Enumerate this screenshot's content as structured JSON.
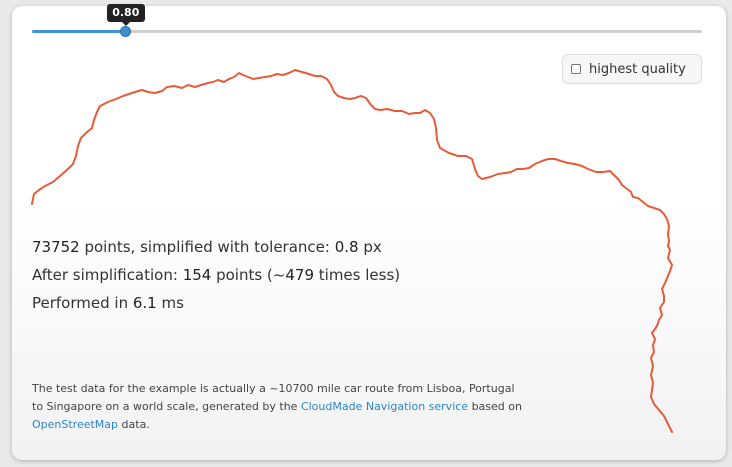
{
  "slider": {
    "value": 0.8,
    "value_label": "0.80",
    "fraction": 0.14,
    "fill_color": "#3d93d6",
    "track_color": "#cfcfcf"
  },
  "quality": {
    "label": "highest quality",
    "checked": false
  },
  "route": {
    "color": "#e65c3a"
  },
  "stats": {
    "line1_points": "73752",
    "line1_text": " points, simplified with tolerance: ",
    "line1_tol": "0.8",
    "line1_unit": " px",
    "line2_text": "After simplification: ",
    "line2_points": "154",
    "line2_mid": " points (~",
    "line2_times": "479",
    "line2_end": " times less)",
    "line3_text": "Performed in ",
    "line3_ms": "6.1",
    "line3_unit": " ms"
  },
  "note": {
    "text1": "The test data for the example is actually a ~10700 mile car route from Lisboa, Portugal to Singapore on a world scale, generated by the ",
    "link1": "CloudMade Navigation service",
    "text2": " based on ",
    "link2": "OpenStreetMap",
    "text3": " data."
  }
}
